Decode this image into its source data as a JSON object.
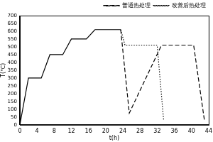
{
  "chart_data": {
    "type": "line",
    "x_label": "t(h)",
    "y_label": "T(℃)",
    "xlim": [
      0,
      44
    ],
    "xticks": [
      0,
      4,
      8,
      12,
      16,
      20,
      24,
      28,
      32,
      36,
      40,
      44
    ],
    "ylim": [
      0,
      700
    ],
    "yticks": [
      0,
      50,
      100,
      150,
      200,
      250,
      300,
      350,
      400,
      450,
      500,
      550,
      600,
      650,
      700
    ],
    "grid": false,
    "legend": "upper right",
    "series": [
      {
        "color": "#000000",
        "line_style": "solid",
        "x": [
          0,
          2,
          5,
          7,
          10,
          12,
          15.5,
          17.5,
          23.5
        ],
        "values": [
          0,
          300,
          300,
          450,
          450,
          550,
          550,
          610,
          610
        ]
      },
      {
        "name": "普通热处理",
        "color": "#000000",
        "line_style": "dashed",
        "x": [
          23.5,
          25.5,
          33,
          40.5,
          43
        ],
        "values": [
          610,
          75,
          510,
          510,
          30
        ]
      },
      {
        "name": "改善后热处理",
        "color": "#000000",
        "line_style": "dotted",
        "x": [
          23.5,
          24.5,
          32,
          33.5
        ],
        "values": [
          610,
          510,
          510,
          30
        ]
      }
    ]
  }
}
